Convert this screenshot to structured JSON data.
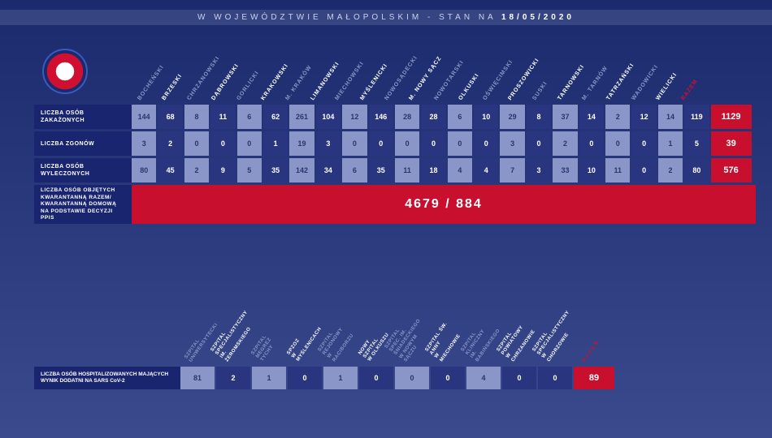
{
  "header": {
    "prefix": "W WOJEWÓDZTWIE MAŁOPOLSKIM - STAN NA",
    "date": "18/05/2020"
  },
  "table1": {
    "columns": [
      {
        "label": "BOCHEŃSKI",
        "hl": false
      },
      {
        "label": "BRZESKI",
        "hl": true
      },
      {
        "label": "CHRZANOWSKI",
        "hl": false
      },
      {
        "label": "DĄBROWSKI",
        "hl": true
      },
      {
        "label": "GORLICKI",
        "hl": false
      },
      {
        "label": "KRAKOWSKI",
        "hl": true
      },
      {
        "label": "M. KRAKÓW",
        "hl": false
      },
      {
        "label": "LIMANOWSKI",
        "hl": true
      },
      {
        "label": "MIECHOWSKI",
        "hl": false
      },
      {
        "label": "MYŚLENICKI",
        "hl": true
      },
      {
        "label": "NOWOSĄDECKI",
        "hl": false
      },
      {
        "label": "M. NOWY SĄCZ",
        "hl": true
      },
      {
        "label": "NOWOTARSKI",
        "hl": false
      },
      {
        "label": "OLKUSKI",
        "hl": true
      },
      {
        "label": "OŚWIĘCIMSKI",
        "hl": false
      },
      {
        "label": "PROSZOWICKI",
        "hl": true
      },
      {
        "label": "SUSKI",
        "hl": false
      },
      {
        "label": "TARNOWSKI",
        "hl": true
      },
      {
        "label": "M. TARNÓW",
        "hl": false
      },
      {
        "label": "TATRZAŃSKI",
        "hl": true
      },
      {
        "label": "WADOWICKI",
        "hl": false
      },
      {
        "label": "WIELICKI",
        "hl": true
      }
    ],
    "total_col": "RAZEM",
    "rows": [
      {
        "label": "LICZBA OSÓB ZAKAŻONYCH",
        "values": [
          144,
          68,
          8,
          11,
          6,
          62,
          261,
          104,
          12,
          146,
          28,
          28,
          6,
          10,
          29,
          8,
          37,
          14,
          2,
          12,
          14,
          119
        ],
        "total": 1129
      },
      {
        "label": "LICZBA ZGONÓW",
        "values": [
          3,
          2,
          0,
          0,
          0,
          1,
          19,
          3,
          0,
          0,
          0,
          0,
          0,
          0,
          3,
          0,
          2,
          0,
          0,
          0,
          1,
          5
        ],
        "total": 39
      },
      {
        "label": "LICZBA OSÓB WYLECZONYCH",
        "values": [
          80,
          45,
          2,
          9,
          5,
          35,
          142,
          34,
          6,
          35,
          11,
          18,
          4,
          4,
          7,
          3,
          33,
          10,
          11,
          0,
          2,
          80
        ],
        "total": 576
      }
    ],
    "bigrow": {
      "label": "LICZBA OSÓB OBJĘTYCH KWARANTANNĄ RAZEM/ KWARANTANNĄ DOMOWĄ NA PODSTAWIE DECYZJI PPIS",
      "value": "4679 / 884"
    }
  },
  "table2": {
    "columns": [
      {
        "label": "SZPITAL\nUNIWERSYTECKI",
        "hl": false
      },
      {
        "label": "SZPITAL\nSPECJALISTYCZNY\nIM. ŻEROMSKIEGO",
        "hl": true
      },
      {
        "label": "SZPITAL\nMEGREZ TYCHY",
        "hl": false
      },
      {
        "label": "SPZOZ\nW MYŚLENICACH",
        "hl": true
      },
      {
        "label": "SZPITAL REJONOWY\nW RACIBORZU",
        "hl": false
      },
      {
        "label": "NOWY SZPITAL\nW OLKUSZU",
        "hl": true
      },
      {
        "label": "SZPITAL SPEC. IM.\nŚNIADECKIEGO\nW NOWYM SĄCZU",
        "hl": false
      },
      {
        "label": "SZPITAL ŚW. ANNY\nW MIECHOWIE",
        "hl": true
      },
      {
        "label": "SZPITAL KLINICZNY\nIM. BABIŃSKIEGO",
        "hl": false
      },
      {
        "label": "SZPITAL\nPOWIATOWY\nW CHRZANOWIE",
        "hl": true
      },
      {
        "label": "SZPITAL\nSPECJALISTYCZNY\nW CHORZOWIE",
        "hl": true
      }
    ],
    "total_col": "RAZEM",
    "row": {
      "label": "LICZBA OSÓB HOSPITALIZOWANYCH MAJĄCYCH WYNIK DODATNI NA SARS CoV-2",
      "values": [
        81,
        2,
        1,
        0,
        1,
        0,
        0,
        0,
        4,
        0,
        0
      ],
      "total": 89
    }
  },
  "colors": {
    "bg_top": "#1a2a6c",
    "bg_bottom": "#3a4a8c",
    "cell_light": "#8a96c8",
    "cell_dark": "#2a3580",
    "accent": "#c8102e",
    "label_bg": "#1a2570",
    "header_muted": "#8a96c8"
  }
}
